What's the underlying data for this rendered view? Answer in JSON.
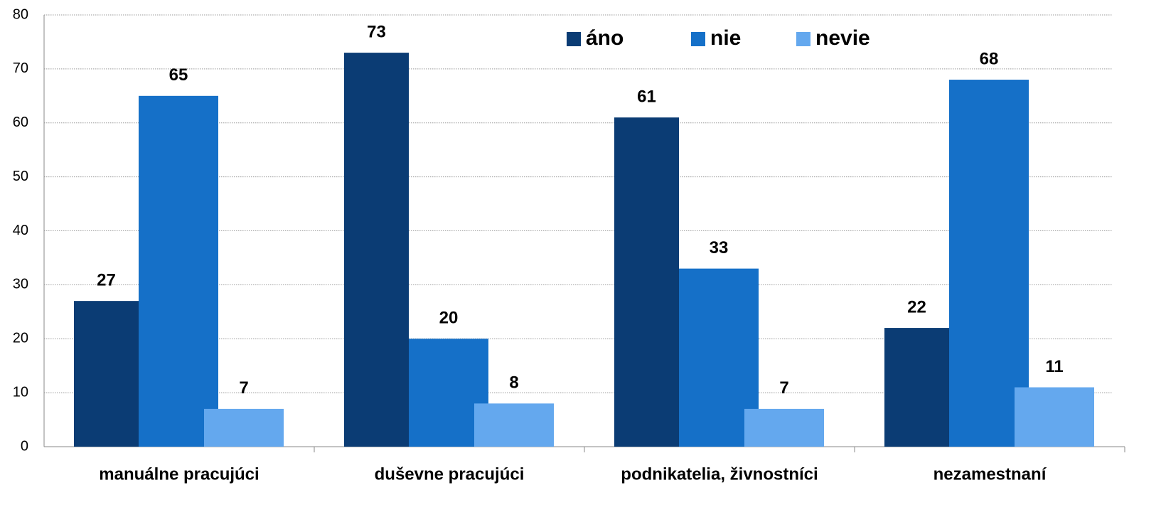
{
  "chart_data": {
    "type": "bar",
    "categories": [
      "manuálne pracujúci",
      "duševne pracujúci",
      "podnikatelia, živnostníci",
      "nezamestnaní"
    ],
    "series": [
      {
        "name": "áno",
        "color": "#0b3c74",
        "values": [
          27,
          73,
          61,
          22
        ]
      },
      {
        "name": "nie",
        "color": "#1570c8",
        "values": [
          65,
          20,
          33,
          68
        ]
      },
      {
        "name": "nevie",
        "color": "#64a8ee",
        "values": [
          7,
          8,
          7,
          11
        ]
      }
    ],
    "ylim": [
      0,
      80
    ],
    "yticks": [
      0,
      10,
      20,
      30,
      40,
      50,
      60,
      70,
      80
    ],
    "grid": true,
    "legend": "top"
  }
}
